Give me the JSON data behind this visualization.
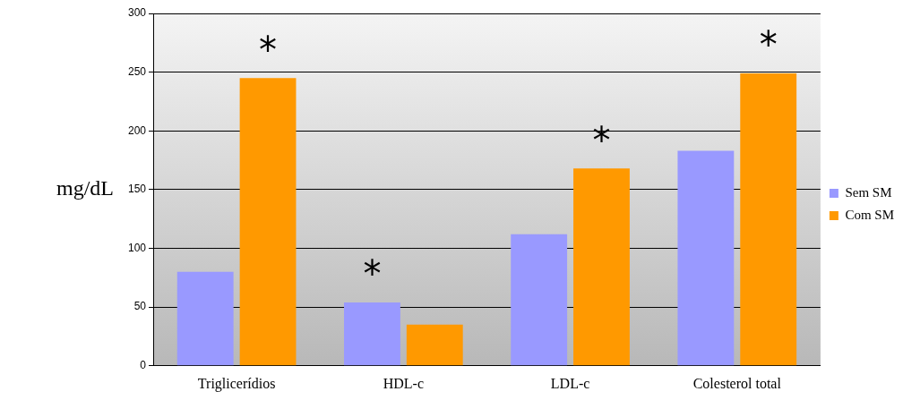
{
  "chart_data": {
    "type": "bar",
    "ylabel": "mg/dL",
    "categories": [
      "Triglicerídios",
      "HDL-c",
      "LDL-c",
      "Colesterol total"
    ],
    "series": [
      {
        "name": "Sem SM",
        "color": "#9999ff",
        "values": [
          80,
          54,
          112,
          183
        ]
      },
      {
        "name": "Com SM",
        "color": "#ff9900",
        "values": [
          245,
          35,
          168,
          249
        ]
      }
    ],
    "ylim": [
      0,
      300
    ],
    "yticks": [
      0,
      50,
      100,
      150,
      200,
      250,
      300
    ],
    "grid": "y",
    "legend": "right",
    "annotations": [
      {
        "text": "*",
        "x": "Triglicerídios",
        "y": 245
      },
      {
        "text": "*",
        "x": "HDL-c",
        "y": 54
      },
      {
        "text": "*",
        "x": "LDL-c",
        "y": 168
      },
      {
        "text": "*",
        "x": "Colesterol total",
        "y": 249
      }
    ]
  }
}
